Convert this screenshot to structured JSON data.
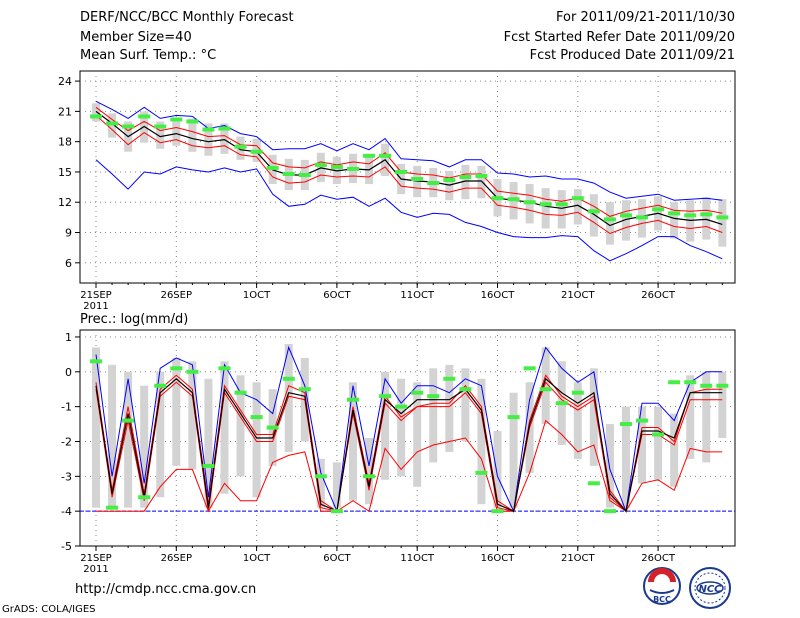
{
  "header": {
    "left": [
      "DERF/NCC/BCC Monthly Forecast",
      "Member Size=40",
      "Mean Surf. Temp.: °C"
    ],
    "right": [
      "For 2011/09/21-2011/10/30",
      "Fcst Started Refer Date 2011/09/20",
      "Fcst Produced Date 2011/09/21"
    ]
  },
  "footer": {
    "url": "http://cmdp.ncc.cma.gov.cn",
    "credit": "GrADS: COLA/IGES",
    "logo1": "BCC",
    "logo2": "NCC"
  },
  "colors": {
    "bar": "#d3d3d3",
    "envelope": "#0000ff",
    "spread": "#ff0000",
    "mean": "#000000",
    "climate": "#44ee44",
    "grid": "#888888"
  },
  "chart_data": [
    {
      "type": "line",
      "title": "Mean Surf. Temp.: °C",
      "x_labels": [
        "21SEP",
        "26SEP",
        "1OCT",
        "6OCT",
        "11OCT",
        "16OCT",
        "21OCT",
        "26OCT"
      ],
      "x_label_year": "2011",
      "x_label_days": [
        1,
        6,
        11,
        16,
        21,
        26,
        31,
        36
      ],
      "ylim": [
        4,
        25
      ],
      "yticks": [
        6,
        9,
        12,
        15,
        18,
        21,
        24
      ],
      "ytick_labels": [
        "6",
        "9",
        "12",
        "15",
        "18",
        "21",
        "24"
      ],
      "days": 40,
      "series": [
        {
          "name": "max",
          "color": "#0000ff",
          "values": [
            22.0,
            21.2,
            20.3,
            21.4,
            20.3,
            20.6,
            20.5,
            19.3,
            19.6,
            18.8,
            18.5,
            17.2,
            17.3,
            17.3,
            17.8,
            17.1,
            17.8,
            17.2,
            18.3,
            16.3,
            16.2,
            16.1,
            15.5,
            16.2,
            16.2,
            14.9,
            14.8,
            14.5,
            14.6,
            14.3,
            14.3,
            13.9,
            13.0,
            12.4,
            12.6,
            12.8,
            12.2,
            12.3,
            12.4,
            12.2
          ]
        },
        {
          "name": "p75",
          "color": "#ff0000",
          "values": [
            21.4,
            20.2,
            19.1,
            20.0,
            19.1,
            19.4,
            19.0,
            18.5,
            18.6,
            17.7,
            17.6,
            15.9,
            15.5,
            15.4,
            16.0,
            15.7,
            16.0,
            15.8,
            16.9,
            15.0,
            14.8,
            14.7,
            14.4,
            14.8,
            14.8,
            13.1,
            12.9,
            12.7,
            12.3,
            12.1,
            12.4,
            11.6,
            10.6,
            11.1,
            11.4,
            11.7,
            11.2,
            11.1,
            11.2,
            10.9
          ]
        },
        {
          "name": "mean",
          "color": "#000000",
          "values": [
            21.0,
            19.8,
            18.5,
            19.5,
            18.5,
            18.8,
            18.3,
            18.0,
            18.2,
            17.2,
            17.0,
            15.2,
            14.7,
            14.7,
            15.4,
            15.1,
            15.3,
            15.2,
            16.2,
            14.3,
            14.1,
            14.0,
            13.7,
            14.1,
            14.1,
            12.4,
            12.2,
            12.0,
            11.6,
            11.4,
            11.7,
            10.8,
            9.7,
            10.3,
            10.6,
            10.9,
            10.4,
            10.2,
            10.3,
            9.8
          ]
        },
        {
          "name": "p25",
          "color": "#ff0000",
          "values": [
            20.6,
            19.2,
            17.7,
            18.9,
            17.9,
            18.2,
            17.6,
            17.4,
            17.6,
            16.7,
            16.5,
            14.5,
            13.9,
            14.0,
            14.7,
            14.5,
            14.6,
            14.5,
            15.5,
            13.6,
            13.4,
            13.3,
            13.0,
            13.4,
            13.4,
            11.7,
            11.5,
            11.2,
            10.8,
            10.7,
            11.0,
            10.0,
            8.9,
            9.5,
            9.9,
            10.2,
            9.6,
            9.4,
            9.6,
            9.0
          ]
        },
        {
          "name": "min",
          "color": "#0000ff",
          "values": [
            16.2,
            14.8,
            13.3,
            15.0,
            14.8,
            15.5,
            15.2,
            15.0,
            15.4,
            15.0,
            15.3,
            12.8,
            11.6,
            11.8,
            12.7,
            12.3,
            12.5,
            11.6,
            12.4,
            11.0,
            10.5,
            10.9,
            10.8,
            10.0,
            9.6,
            9.0,
            8.6,
            8.5,
            8.5,
            8.7,
            8.6,
            7.2,
            6.2,
            6.9,
            7.7,
            8.6,
            8.6,
            7.7,
            7.1,
            6.4
          ]
        },
        {
          "name": "bar_top",
          "color": "#d3d3d3",
          "values": [
            21.8,
            20.8,
            20.0,
            21.0,
            20.0,
            20.4,
            20.3,
            19.8,
            19.8,
            18.5,
            18.3,
            16.7,
            16.3,
            16.2,
            16.9,
            16.5,
            16.8,
            16.6,
            17.8,
            15.8,
            15.6,
            15.4,
            15.1,
            15.7,
            15.6,
            14.3,
            14.0,
            13.8,
            13.4,
            13.2,
            13.3,
            12.8,
            12.0,
            12.2,
            12.3,
            12.6,
            12.0,
            12.2,
            12.5,
            12.3
          ]
        },
        {
          "name": "bar_bottom",
          "color": "#d3d3d3",
          "values": [
            20.0,
            18.4,
            17.0,
            17.9,
            17.3,
            17.6,
            17.0,
            16.6,
            16.8,
            16.2,
            16.0,
            13.8,
            13.2,
            13.2,
            14.0,
            13.8,
            13.9,
            13.8,
            14.6,
            12.8,
            12.5,
            12.5,
            12.2,
            12.3,
            12.4,
            10.6,
            10.3,
            9.9,
            9.4,
            9.4,
            9.8,
            8.6,
            7.8,
            8.2,
            8.5,
            9.2,
            8.4,
            8.1,
            8.3,
            7.6
          ]
        },
        {
          "name": "climate",
          "color": "#44ee44",
          "values": [
            20.5,
            19.8,
            19.5,
            20.5,
            19.5,
            20.2,
            20.0,
            19.2,
            19.3,
            17.5,
            17.0,
            15.4,
            14.8,
            14.7,
            15.7,
            15.5,
            15.3,
            16.6,
            16.6,
            15.0,
            14.3,
            13.9,
            14.2,
            14.5,
            14.6,
            12.4,
            12.3,
            12.0,
            11.8,
            11.8,
            12.4,
            11.1,
            10.3,
            10.7,
            10.5,
            11.3,
            10.9,
            10.7,
            10.8,
            10.5
          ]
        }
      ]
    },
    {
      "type": "line",
      "title": "Prec.: log(mm/d)",
      "x_labels": [
        "21SEP",
        "26SEP",
        "1OCT",
        "6OCT",
        "11OCT",
        "16OCT",
        "21OCT",
        "26OCT"
      ],
      "x_label_year": "2011",
      "x_label_days": [
        1,
        6,
        11,
        16,
        21,
        26,
        31,
        36
      ],
      "ylim": [
        -5,
        1.2
      ],
      "yticks": [
        -5,
        -4,
        -3,
        -2,
        -1,
        0,
        1
      ],
      "ytick_labels": [
        "-5",
        "-4",
        "-3",
        "-2",
        "-1",
        "0",
        "1"
      ],
      "floor_line": -4,
      "days": 40,
      "series": [
        {
          "name": "max",
          "color": "#0000ff",
          "values": [
            0.5,
            -3.0,
            -0.2,
            -3.2,
            0.1,
            0.4,
            0.2,
            -3.6,
            0.2,
            -0.6,
            -0.8,
            -1.2,
            0.7,
            -0.4,
            -2.9,
            -4.0,
            -0.4,
            -2.7,
            -0.2,
            -0.9,
            -0.4,
            -0.4,
            -0.6,
            -0.2,
            -0.4,
            -3.0,
            -4.0,
            -0.8,
            0.7,
            0.1,
            -0.3,
            0.0,
            -2.8,
            -4.0,
            -0.9,
            -0.9,
            -1.4,
            -0.3,
            0.0,
            0.0
          ]
        },
        {
          "name": "p75",
          "color": "#ff0000",
          "values": [
            -0.3,
            -3.4,
            -1.0,
            -3.5,
            -0.5,
            -0.1,
            -0.5,
            -3.8,
            -0.4,
            -1.1,
            -1.8,
            -1.8,
            -0.4,
            -0.6,
            -3.7,
            -4.0,
            -1.0,
            -3.2,
            -0.7,
            -1.3,
            -1.0,
            -0.9,
            -0.9,
            -0.4,
            -1.0,
            -3.7,
            -4.0,
            -1.4,
            -0.1,
            -0.7,
            -1.0,
            -0.7,
            -3.4,
            -4.0,
            -1.6,
            -1.6,
            -2.0,
            -0.6,
            -0.5,
            -0.5
          ]
        },
        {
          "name": "mean",
          "color": "#000000",
          "values": [
            -0.4,
            -3.5,
            -1.2,
            -3.6,
            -0.6,
            -0.2,
            -0.6,
            -3.9,
            -0.5,
            -1.2,
            -1.9,
            -1.9,
            -0.6,
            -0.7,
            -3.8,
            -4.0,
            -1.1,
            -3.3,
            -0.8,
            -1.2,
            -0.8,
            -0.8,
            -0.8,
            -0.5,
            -1.1,
            -3.8,
            -4.0,
            -1.5,
            -0.2,
            -0.6,
            -0.9,
            -0.6,
            -3.5,
            -4.0,
            -1.7,
            -1.7,
            -1.9,
            -0.6,
            -0.6,
            -0.6
          ]
        },
        {
          "name": "p25",
          "color": "#ff0000",
          "values": [
            -0.5,
            -3.6,
            -1.4,
            -3.7,
            -0.7,
            -0.3,
            -0.7,
            -4.0,
            -0.6,
            -1.3,
            -2.0,
            -2.0,
            -0.7,
            -0.8,
            -3.9,
            -4.0,
            -1.2,
            -3.4,
            -0.9,
            -1.4,
            -1.0,
            -1.0,
            -1.0,
            -0.6,
            -1.2,
            -3.9,
            -4.0,
            -1.6,
            -0.3,
            -0.8,
            -1.1,
            -0.8,
            -3.6,
            -4.0,
            -1.8,
            -1.8,
            -2.1,
            -0.8,
            -0.8,
            -0.8
          ]
        },
        {
          "name": "min",
          "color": "#ff0000",
          "values": [
            -4.0,
            -4.0,
            -4.0,
            -4.0,
            -3.3,
            -2.8,
            -2.8,
            -4.0,
            -3.2,
            -3.7,
            -3.7,
            -2.6,
            -2.4,
            -2.3,
            -4.0,
            -4.0,
            -3.7,
            -4.0,
            -2.2,
            -2.8,
            -2.3,
            -2.1,
            -2.0,
            -1.9,
            -2.5,
            -4.0,
            -4.0,
            -2.9,
            -1.4,
            -1.8,
            -2.3,
            -2.1,
            -3.7,
            -4.0,
            -3.2,
            -3.1,
            -3.4,
            -2.2,
            -2.3,
            -2.3
          ]
        },
        {
          "name": "bar_top",
          "color": "#d3d3d3",
          "values": [
            0.7,
            0.2,
            0.0,
            -0.4,
            0.0,
            0.4,
            0.3,
            -0.2,
            0.3,
            -0.1,
            -0.3,
            -0.5,
            0.8,
            0.4,
            -2.5,
            -2.6,
            -0.3,
            -1.9,
            0.0,
            -0.2,
            -0.3,
            0.1,
            0.2,
            0.1,
            -0.2,
            -1.7,
            -0.6,
            -0.3,
            0.7,
            0.3,
            -0.3,
            0.1,
            -1.5,
            -1.0,
            -1.0,
            -1.0,
            -1.2,
            -0.1,
            0.0,
            0.0
          ]
        },
        {
          "name": "bar_bottom",
          "color": "#d3d3d3",
          "values": [
            -3.9,
            -3.9,
            -3.9,
            -3.9,
            -3.6,
            -2.7,
            -2.8,
            -3.9,
            -3.5,
            -3.0,
            -3.6,
            -2.7,
            -2.3,
            -2.0,
            -3.9,
            -3.9,
            -3.7,
            -3.8,
            -3.1,
            -3.0,
            -3.3,
            -2.6,
            -2.3,
            -2.0,
            -3.8,
            -3.9,
            -3.9,
            -2.9,
            -1.5,
            -2.1,
            -2.5,
            -2.7,
            -3.9,
            -3.9,
            -3.2,
            -3.1,
            -3.3,
            -2.5,
            -2.6,
            -1.9
          ]
        },
        {
          "name": "climate",
          "color": "#44ee44",
          "values": [
            0.3,
            -3.9,
            -1.4,
            -3.6,
            -0.4,
            0.1,
            0.0,
            -2.7,
            0.1,
            -0.6,
            -1.3,
            -1.6,
            -0.2,
            -0.5,
            -3.0,
            -4.0,
            -0.8,
            -3.0,
            -0.7,
            -1.0,
            -0.6,
            -0.7,
            -0.2,
            -0.5,
            -2.9,
            -4.0,
            -1.3,
            0.1,
            -0.5,
            -0.9,
            -0.6,
            -3.2,
            -4.0,
            -1.5,
            -1.4,
            -1.8,
            -0.3,
            -0.3,
            -0.4,
            -0.4
          ]
        }
      ]
    }
  ]
}
